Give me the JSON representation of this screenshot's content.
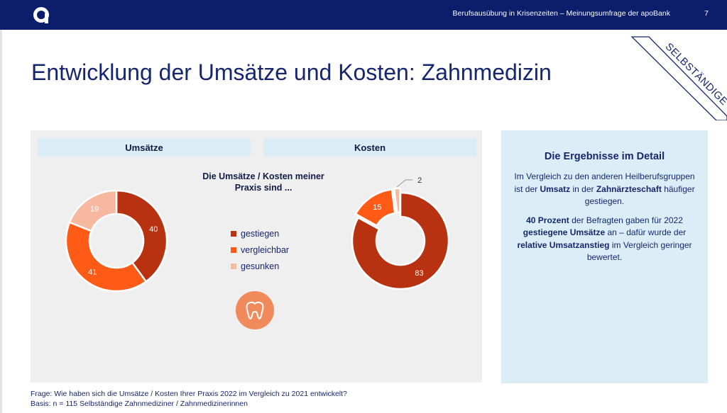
{
  "header": {
    "text": "Berufsausübung in Krisenzeiten – Meinungsumfrage der apoBank",
    "page_number": "7",
    "logo_icon": "apobank-a-logo-icon",
    "bar_color": "#0b1d6b"
  },
  "title": "Entwicklung der Umsätze und Kosten: Zahnmedizin",
  "ribbon": "SELBSTÄNDIGE",
  "colors": {
    "gestiegen": "#b83211",
    "vergleichbar": "#ff5b17",
    "gesunken": "#f6b9a0",
    "title": "#16266e",
    "panel": "#efefef",
    "detail_panel": "#dbeef8",
    "tooth_badge": "#f08a5b"
  },
  "question": "Die Umsätze / Kosten meiner Praxis sind ...",
  "legend": [
    "gestiegen",
    "vergleichbar",
    "gesunken"
  ],
  "tooth_icon": "tooth-icon",
  "chart_data": [
    {
      "type": "pie",
      "title": "Umsätze",
      "categories": [
        "gestiegen",
        "vergleichbar",
        "gesunken"
      ],
      "values": [
        40,
        41,
        19
      ],
      "labels": [
        "40",
        "41",
        "19"
      ]
    },
    {
      "type": "pie",
      "title": "Kosten",
      "categories": [
        "gestiegen",
        "vergleichbar",
        "gesunken"
      ],
      "values": [
        83,
        15,
        2
      ],
      "labels": [
        "83",
        "15",
        "2"
      ]
    }
  ],
  "detail": {
    "title": "Die Ergebnisse im Detail",
    "p1": [
      {
        "t": "Im Vergleich zu den anderen Heilberufsgruppen ist der ",
        "b": false
      },
      {
        "t": "Umsatz",
        "b": true
      },
      {
        "t": " in der ",
        "b": false
      },
      {
        "t": "Zahnärzteschaft",
        "b": true
      },
      {
        "t": " häufiger gestiegen.",
        "b": false
      }
    ],
    "p2": [
      {
        "t": "40 Prozent",
        "b": true
      },
      {
        "t": " der Befragten gaben für 2022 ",
        "b": false
      },
      {
        "t": "gestiegene Umsätze",
        "b": true
      },
      {
        "t": " an – ",
        "b": false
      },
      {
        "t": "dafür wurde der ",
        "b": false
      },
      {
        "t": "relative Umsatzanstieg",
        "b": true
      },
      {
        "t": " im Vergleich geringer bewertet.",
        "b": false
      }
    ]
  },
  "footnote": {
    "frage": "Frage: Wie haben sich die Umsätze / Kosten Ihrer Praxis 2022 im Vergleich zu 2021 entwickelt?",
    "basis": "Basis: n = 115 Selbständige Zahnmediziner / Zahnmedizinerinnen"
  }
}
